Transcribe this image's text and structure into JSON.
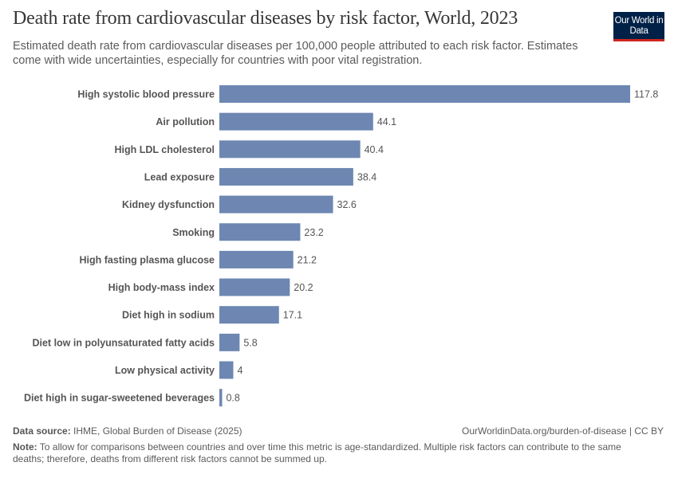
{
  "header": {
    "title": "Death rate from cardiovascular diseases by risk factor, World, 2023",
    "subtitle": "Estimated death rate from cardiovascular diseases per 100,000 people attributed to each risk factor. Estimates come with wide uncertainties, especially for countries with poor vital registration.",
    "logo": "Our World in Data"
  },
  "chart_data": {
    "type": "bar",
    "orientation": "horizontal",
    "categories": [
      "High systolic blood pressure",
      "Air pollution",
      "High LDL cholesterol",
      "Lead exposure",
      "Kidney dysfunction",
      "Smoking",
      "High fasting plasma glucose",
      "High body-mass index",
      "Diet high in sodium",
      "Diet low in polyunsaturated fatty acids",
      "Low physical activity",
      "Diet high in sugar-sweetened beverages"
    ],
    "values": [
      117.8,
      44.1,
      40.4,
      38.4,
      32.6,
      23.2,
      21.2,
      20.2,
      17.1,
      5.8,
      4,
      0.8
    ],
    "value_labels": [
      "117.8",
      "44.1",
      "40.4",
      "38.4",
      "32.6",
      "23.2",
      "21.2",
      "20.2",
      "17.1",
      "5.8",
      "4",
      "0.8"
    ],
    "bar_color": "#6d87b2",
    "grid": false
  },
  "footer": {
    "source_label": "Data source:",
    "source": "IHME, Global Burden of Disease (2025)",
    "url": "OurWorldinData.org/burden-of-disease | CC BY",
    "note_label": "Note:",
    "note": "To allow for comparisons between countries and over time this metric is age-standardized. Multiple risk factors can contribute to the same deaths; therefore, deaths from different risk factors cannot be summed up."
  }
}
